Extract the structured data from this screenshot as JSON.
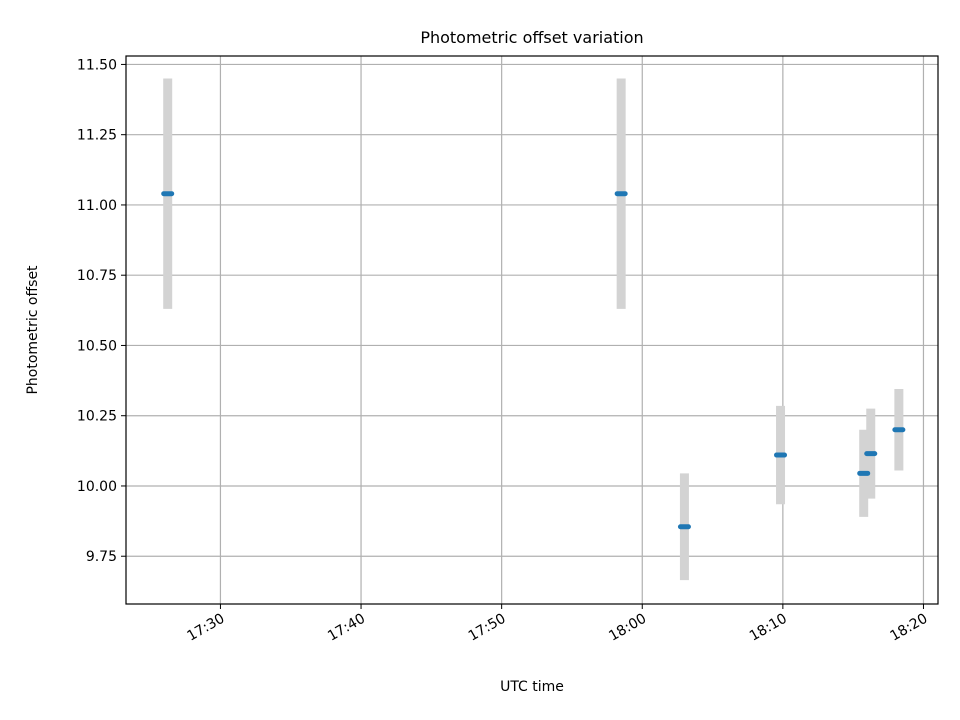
{
  "chart_data": {
    "type": "scatter",
    "title": "Photometric offset variation",
    "xlabel": "UTC time",
    "ylabel": "Photometric offset",
    "x_ticks": [
      "17:30",
      "17:40",
      "17:50",
      "18:00",
      "18:10",
      "18:20"
    ],
    "y_ticks": [
      "9.75",
      "10.00",
      "10.25",
      "10.50",
      "10.75",
      "11.00",
      "11.25",
      "11.50"
    ],
    "xlim": [
      "17:23:17",
      "18:21:02"
    ],
    "ylim": [
      9.58,
      11.53
    ],
    "grid": true,
    "legend": "none",
    "marker_color": "#1f77b4",
    "errorbar_color": "#d3d3d3",
    "points": [
      {
        "x": "17:26:15",
        "y": 11.04,
        "err": 0.41
      },
      {
        "x": "17:58:30",
        "y": 11.04,
        "err": 0.41
      },
      {
        "x": "18:03:00",
        "y": 9.855,
        "err": 0.19
      },
      {
        "x": "18:09:50",
        "y": 10.11,
        "err": 0.175
      },
      {
        "x": "18:15:45",
        "y": 10.045,
        "err": 0.155
      },
      {
        "x": "18:16:15",
        "y": 10.115,
        "err": 0.16
      },
      {
        "x": "18:18:15",
        "y": 10.2,
        "err": 0.145
      }
    ]
  }
}
